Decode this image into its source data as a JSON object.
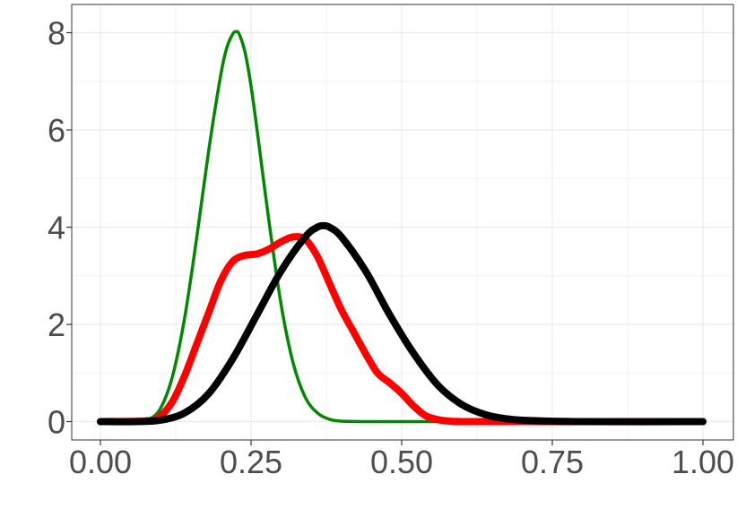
{
  "chart_data": {
    "type": "line",
    "title": "",
    "xlabel": "",
    "ylabel": "",
    "xlim": [
      0,
      1
    ],
    "ylim": [
      0,
      8.6
    ],
    "x_ticks": [
      0,
      0.25,
      0.5,
      0.75,
      1.0
    ],
    "x_tick_labels": [
      "0.00",
      "0.25",
      "0.50",
      "0.75",
      "1.00"
    ],
    "y_ticks": [
      0,
      2,
      4,
      6,
      8
    ],
    "y_tick_labels": [
      "0",
      "2",
      "4",
      "6",
      "8"
    ],
    "grid": true,
    "legend": "none",
    "series": [
      {
        "color": "#008800",
        "x": [
          0.0,
          0.05,
          0.08,
          0.1,
          0.12,
          0.14,
          0.16,
          0.18,
          0.2,
          0.21,
          0.22,
          0.225,
          0.23,
          0.24,
          0.25,
          0.26,
          0.28,
          0.3,
          0.32,
          0.34,
          0.36,
          0.38,
          0.4,
          0.45,
          0.5,
          1.0
        ],
        "y": [
          0.0,
          0.0,
          0.05,
          0.28,
          0.95,
          2.15,
          3.8,
          5.6,
          7.15,
          7.7,
          7.98,
          8.02,
          7.98,
          7.6,
          6.9,
          6.0,
          4.1,
          2.4,
          1.2,
          0.5,
          0.18,
          0.05,
          0.01,
          0.0,
          0.0,
          0.0
        ]
      },
      {
        "color": "#ff0000",
        "x": [
          0.0,
          0.08,
          0.1,
          0.12,
          0.14,
          0.16,
          0.18,
          0.2,
          0.22,
          0.24,
          0.26,
          0.28,
          0.3,
          0.32,
          0.34,
          0.36,
          0.38,
          0.4,
          0.42,
          0.44,
          0.46,
          0.48,
          0.5,
          0.52,
          0.54,
          0.56,
          0.58,
          0.6,
          0.62,
          1.0
        ],
        "y": [
          0.0,
          0.02,
          0.12,
          0.42,
          0.95,
          1.6,
          2.25,
          2.9,
          3.3,
          3.42,
          3.45,
          3.55,
          3.7,
          3.8,
          3.75,
          3.4,
          2.85,
          2.3,
          1.85,
          1.4,
          1.0,
          0.8,
          0.58,
          0.32,
          0.12,
          0.04,
          0.01,
          0.0,
          0.0,
          0.0
        ]
      },
      {
        "color": "#000000",
        "x": [
          0.0,
          0.06,
          0.1,
          0.14,
          0.18,
          0.22,
          0.26,
          0.3,
          0.34,
          0.36,
          0.37,
          0.38,
          0.4,
          0.44,
          0.48,
          0.52,
          0.56,
          0.6,
          0.64,
          0.68,
          0.72,
          0.8,
          1.0
        ],
        "y": [
          0.0,
          0.0,
          0.03,
          0.18,
          0.58,
          1.3,
          2.2,
          3.1,
          3.8,
          4.0,
          4.03,
          4.0,
          3.8,
          3.1,
          2.2,
          1.4,
          0.75,
          0.35,
          0.14,
          0.05,
          0.02,
          0.0,
          0.0
        ]
      }
    ]
  }
}
